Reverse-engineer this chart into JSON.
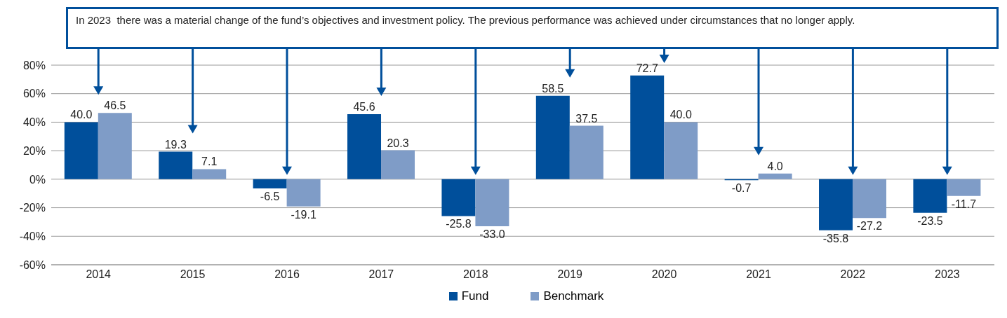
{
  "chart_data": {
    "type": "bar",
    "annotations": [
      "In 2023  there was a material change of the fund’s objectives and investment policy. The previous performance was achieved under circumstances that no longer apply."
    ],
    "categories": [
      "2014",
      "2015",
      "2016",
      "2017",
      "2018",
      "2019",
      "2020",
      "2021",
      "2022",
      "2023"
    ],
    "series": [
      {
        "name": "Fund",
        "color": "#004f9b",
        "values": [
          40.0,
          19.3,
          -6.5,
          45.6,
          -25.8,
          58.5,
          72.7,
          -0.7,
          -35.8,
          -23.5
        ],
        "value_labels": [
          "40.0",
          "19.3",
          "-6.5",
          "45.6",
          "-25.8",
          "58.5",
          "72.7",
          "-0.7",
          "-35.8",
          "-23.5"
        ]
      },
      {
        "name": "Benchmark",
        "color": "#7f9cc7",
        "values": [
          46.5,
          7.1,
          -19.1,
          20.3,
          -33.0,
          37.5,
          40.0,
          4.0,
          -27.2,
          -11.7
        ],
        "value_labels": [
          "46.5",
          "7.1",
          "-19.1",
          "20.3",
          "-33.0",
          "37.5",
          "40.0",
          "4.0",
          "-27.2",
          "-11.7"
        ]
      }
    ],
    "ylim": [
      -60,
      80
    ],
    "yticks": [
      {
        "value": -60,
        "label": "-60%"
      },
      {
        "value": -40,
        "label": "-40%"
      },
      {
        "value": -20,
        "label": "-20%"
      },
      {
        "value": 0,
        "label": "0%"
      },
      {
        "value": 20,
        "label": "20%"
      },
      {
        "value": 40,
        "label": "40%"
      },
      {
        "value": 60,
        "label": "60%"
      },
      {
        "value": 80,
        "label": "80%"
      }
    ],
    "grid": "y",
    "legend": "bottom"
  }
}
